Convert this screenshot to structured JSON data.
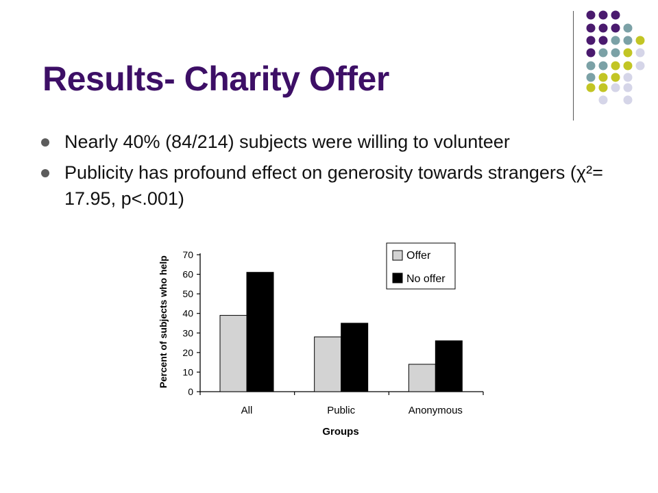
{
  "slide": {
    "title": "Results- Charity Offer",
    "bullets": [
      "Nearly 40% (84/214) subjects were willing to volunteer",
      "Publicity has profound effect on generosity towards strangers (χ²= 17.95, p<.001)"
    ]
  },
  "theme": {
    "title_color": "#3d0f66",
    "dot_colors": [
      "#4a1a6e",
      "#7ba1a6",
      "#c2c524",
      "#d5d5e8"
    ]
  },
  "chart_data": {
    "type": "bar",
    "categories": [
      "All",
      "Public",
      "Anonymous"
    ],
    "series": [
      {
        "name": "Offer",
        "values": [
          39,
          28,
          14
        ],
        "color": "#d3d3d3"
      },
      {
        "name": "No offer",
        "values": [
          61,
          35,
          26
        ],
        "color": "#000000"
      }
    ],
    "xlabel": "Groups",
    "ylabel": "Percent of subjects who help",
    "ylim": [
      0,
      70
    ],
    "yticks": [
      "0",
      "10",
      "20",
      "30",
      "40",
      "50",
      "60",
      "70"
    ],
    "grid": false,
    "legend": "top-right"
  }
}
